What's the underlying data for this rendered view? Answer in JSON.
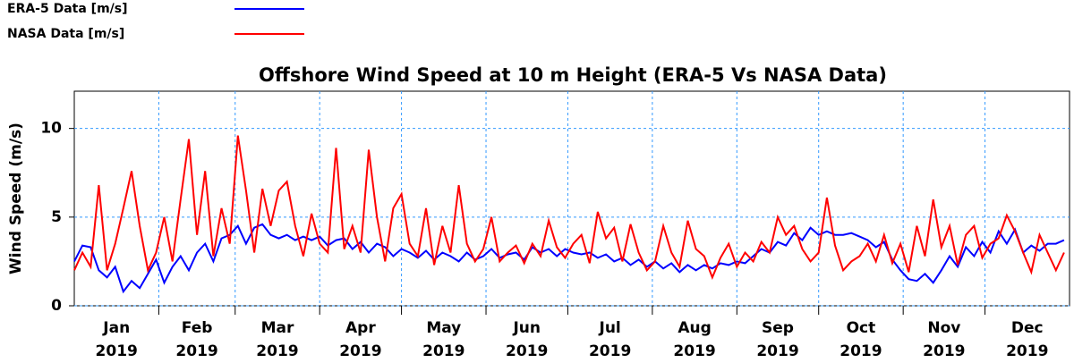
{
  "chart_data": {
    "type": "line",
    "title": "Offshore Wind Speed at 10 m Height (ERA-5 Vs NASA Data)",
    "ylabel": "Wind Speed (m/s)",
    "x": [
      0,
      3,
      6,
      9,
      12,
      15,
      18,
      21,
      24,
      27,
      30,
      33,
      36,
      39,
      42,
      45,
      48,
      51,
      54,
      57,
      60,
      63,
      66,
      69,
      72,
      75,
      78,
      81,
      84,
      87,
      90,
      93,
      96,
      99,
      102,
      105,
      108,
      111,
      114,
      117,
      120,
      123,
      126,
      129,
      132,
      135,
      138,
      141,
      144,
      147,
      150,
      153,
      156,
      159,
      162,
      165,
      168,
      171,
      174,
      177,
      180,
      183,
      186,
      189,
      192,
      195,
      198,
      201,
      204,
      207,
      210,
      213,
      216,
      219,
      222,
      225,
      228,
      231,
      234,
      237,
      240,
      243,
      246,
      249,
      252,
      255,
      258,
      261,
      264,
      267,
      270,
      273,
      276,
      279,
      282,
      285,
      288,
      291,
      294,
      297,
      300,
      303,
      306,
      309,
      312,
      315,
      318,
      321,
      324,
      327,
      330,
      333,
      336,
      339,
      342,
      345,
      348,
      351,
      354,
      357,
      360,
      363
    ],
    "series": [
      {
        "name": "ERA-5 Data [m/s]",
        "color": "#0000ff",
        "values": [
          2.5,
          3.4,
          3.3,
          2.0,
          1.6,
          2.2,
          0.8,
          1.4,
          1.0,
          1.8,
          2.6,
          1.3,
          2.2,
          2.8,
          2.0,
          3.0,
          3.5,
          2.5,
          3.8,
          4.0,
          4.5,
          3.5,
          4.4,
          4.6,
          4.0,
          3.8,
          4.0,
          3.7,
          3.9,
          3.7,
          3.9,
          3.4,
          3.7,
          3.8,
          3.2,
          3.6,
          3.0,
          3.5,
          3.3,
          2.8,
          3.2,
          3.0,
          2.7,
          3.1,
          2.6,
          3.0,
          2.8,
          2.5,
          3.0,
          2.6,
          2.8,
          3.2,
          2.7,
          2.9,
          3.0,
          2.6,
          3.3,
          3.0,
          3.2,
          2.8,
          3.2,
          3.0,
          2.9,
          3.0,
          2.7,
          2.9,
          2.5,
          2.7,
          2.3,
          2.6,
          2.2,
          2.5,
          2.1,
          2.4,
          1.9,
          2.3,
          2.0,
          2.3,
          2.1,
          2.4,
          2.3,
          2.5,
          2.4,
          2.8,
          3.2,
          3.0,
          3.6,
          3.4,
          4.1,
          3.7,
          4.4,
          4.0,
          4.2,
          4.0,
          4.0,
          4.1,
          3.9,
          3.7,
          3.3,
          3.6,
          2.6,
          2.0,
          1.5,
          1.4,
          1.8,
          1.3,
          2.0,
          2.8,
          2.2,
          3.3,
          2.8,
          3.6,
          3.0,
          4.2,
          3.5,
          4.3,
          3.0,
          3.4,
          3.1,
          3.5,
          3.5,
          3.7
        ]
      },
      {
        "name": "NASA Data  [m/s]",
        "color": "#ff0000",
        "values": [
          2.0,
          3.0,
          2.2,
          6.8,
          2.0,
          3.5,
          5.5,
          7.6,
          4.5,
          2.0,
          3.0,
          5.0,
          2.5,
          6.0,
          9.4,
          4.0,
          7.6,
          2.8,
          5.5,
          3.5,
          9.6,
          6.5,
          3.0,
          6.6,
          4.5,
          6.5,
          7.0,
          4.5,
          2.8,
          5.2,
          3.5,
          3.0,
          8.9,
          3.2,
          4.5,
          3.0,
          8.8,
          5.0,
          2.5,
          5.5,
          6.3,
          3.5,
          2.8,
          5.5,
          2.3,
          4.5,
          3.0,
          6.8,
          3.5,
          2.5,
          3.2,
          5.0,
          2.5,
          3.0,
          3.4,
          2.4,
          3.5,
          2.8,
          4.8,
          3.3,
          2.7,
          3.5,
          4.0,
          2.4,
          5.3,
          3.8,
          4.4,
          2.5,
          4.6,
          3.0,
          2.0,
          2.5,
          4.5,
          3.0,
          2.2,
          4.8,
          3.2,
          2.8,
          1.6,
          2.7,
          3.5,
          2.2,
          3.0,
          2.5,
          3.6,
          3.0,
          5.0,
          4.0,
          4.5,
          3.2,
          2.5,
          3.0,
          6.1,
          3.4,
          2.0,
          2.5,
          2.8,
          3.5,
          2.5,
          4.0,
          2.4,
          3.5,
          1.9,
          4.5,
          2.8,
          6.0,
          3.3,
          4.5,
          2.3,
          4.0,
          4.5,
          2.7,
          3.5,
          3.8,
          5.1,
          4.2,
          3.0,
          1.9,
          4.0,
          3.0,
          2.0,
          3.0
        ]
      }
    ],
    "xlim": [
      0,
      365
    ],
    "xgrid": [
      31,
      59,
      90,
      120,
      151,
      181,
      212,
      243,
      273,
      304,
      334
    ],
    "xticks": [
      {
        "value": 15.5,
        "label": "Jan\n2019"
      },
      {
        "value": 45,
        "label": "Feb\n2019"
      },
      {
        "value": 74.5,
        "label": "Mar\n2019"
      },
      {
        "value": 105,
        "label": "Apr\n2019"
      },
      {
        "value": 135.5,
        "label": "May\n2019"
      },
      {
        "value": 166,
        "label": "Jun\n2019"
      },
      {
        "value": 196.5,
        "label": "Jul\n2019"
      },
      {
        "value": 227.5,
        "label": "Aug\n2019"
      },
      {
        "value": 258,
        "label": "Sep\n2019"
      },
      {
        "value": 288.5,
        "label": "Oct\n2019"
      },
      {
        "value": 319,
        "label": "Nov\n2019"
      },
      {
        "value": 349.5,
        "label": "Dec\n2019"
      }
    ],
    "ylim": [
      0,
      12.1
    ],
    "yticks": [
      0,
      5,
      10
    ],
    "grid": true
  }
}
